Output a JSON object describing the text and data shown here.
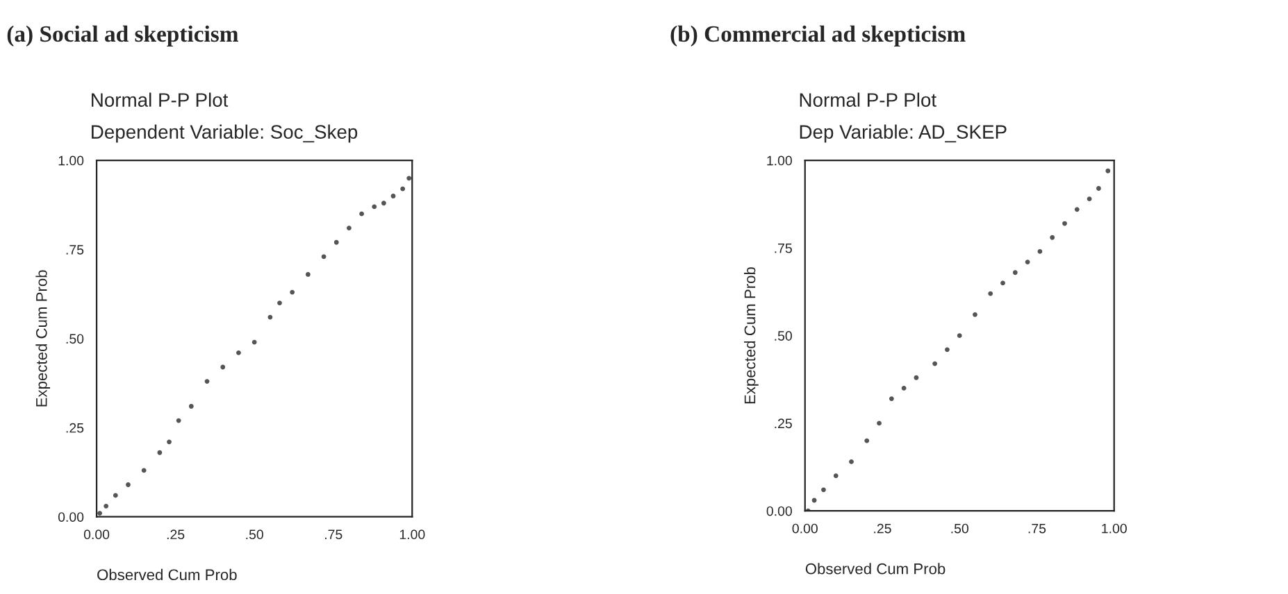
{
  "chart_data": [
    {
      "type": "scatter",
      "title": "(a) Social ad skepticism",
      "subtitle": "Normal P-P Plot\nDependent Variable: Soc_Skep",
      "xlabel": "Observed Cum Prob",
      "ylabel": "Expected Cum Prob",
      "marker": "circle",
      "grid": false,
      "xlim": [
        0,
        1
      ],
      "ylim": [
        0,
        1
      ],
      "xticks": [
        {
          "value": 0,
          "label": "0.00"
        },
        {
          "value": 0.25,
          "label": ".25"
        },
        {
          "value": 0.5,
          "label": ".50"
        },
        {
          "value": 0.75,
          "label": ".75"
        },
        {
          "value": 1,
          "label": "1.00"
        }
      ],
      "yticks": [
        {
          "value": 0,
          "label": "0.00"
        },
        {
          "value": 0.25,
          "label": ".25"
        },
        {
          "value": 0.5,
          "label": ".50"
        },
        {
          "value": 0.75,
          "label": ".75"
        },
        {
          "value": 1,
          "label": "1.00"
        }
      ],
      "series": [
        {
          "color": "#555555",
          "x": [
            0.01,
            0.03,
            0.06,
            0.1,
            0.15,
            0.2,
            0.23,
            0.26,
            0.3,
            0.35,
            0.4,
            0.45,
            0.5,
            0.55,
            0.58,
            0.62,
            0.67,
            0.72,
            0.76,
            0.8,
            0.84,
            0.88,
            0.91,
            0.94,
            0.97,
            0.99
          ],
          "values": [
            0.01,
            0.03,
            0.06,
            0.09,
            0.13,
            0.18,
            0.21,
            0.27,
            0.31,
            0.38,
            0.42,
            0.46,
            0.49,
            0.56,
            0.6,
            0.63,
            0.68,
            0.73,
            0.77,
            0.81,
            0.85,
            0.87,
            0.88,
            0.9,
            0.92,
            0.95
          ]
        }
      ]
    },
    {
      "type": "scatter",
      "title": "(b) Commercial ad skepticism",
      "subtitle": "Normal P-P Plot\nDep Variable: AD_SKEP",
      "xlabel": "Observed Cum Prob",
      "ylabel": "Expected Cum Prob",
      "marker": "circle",
      "grid": false,
      "xlim": [
        0,
        1
      ],
      "ylim": [
        0,
        1
      ],
      "xticks": [
        {
          "value": 0,
          "label": "0.00"
        },
        {
          "value": 0.25,
          "label": ".25"
        },
        {
          "value": 0.5,
          "label": ".50"
        },
        {
          "value": 0.75,
          "label": ".75"
        },
        {
          "value": 1,
          "label": "1.00"
        }
      ],
      "yticks": [
        {
          "value": 0,
          "label": "0.00"
        },
        {
          "value": 0.25,
          "label": ".25"
        },
        {
          "value": 0.5,
          "label": ".50"
        },
        {
          "value": 0.75,
          "label": ".75"
        },
        {
          "value": 1,
          "label": "1.00"
        }
      ],
      "series": [
        {
          "color": "#555555",
          "x": [
            0.01,
            0.03,
            0.06,
            0.1,
            0.15,
            0.2,
            0.24,
            0.28,
            0.32,
            0.36,
            0.42,
            0.46,
            0.5,
            0.55,
            0.6,
            0.64,
            0.68,
            0.72,
            0.76,
            0.8,
            0.84,
            0.88,
            0.92,
            0.95,
            0.98
          ],
          "values": [
            0.0,
            0.03,
            0.06,
            0.1,
            0.14,
            0.2,
            0.25,
            0.32,
            0.35,
            0.38,
            0.42,
            0.46,
            0.5,
            0.56,
            0.62,
            0.65,
            0.68,
            0.71,
            0.74,
            0.78,
            0.82,
            0.86,
            0.89,
            0.92,
            0.97
          ]
        }
      ]
    }
  ]
}
